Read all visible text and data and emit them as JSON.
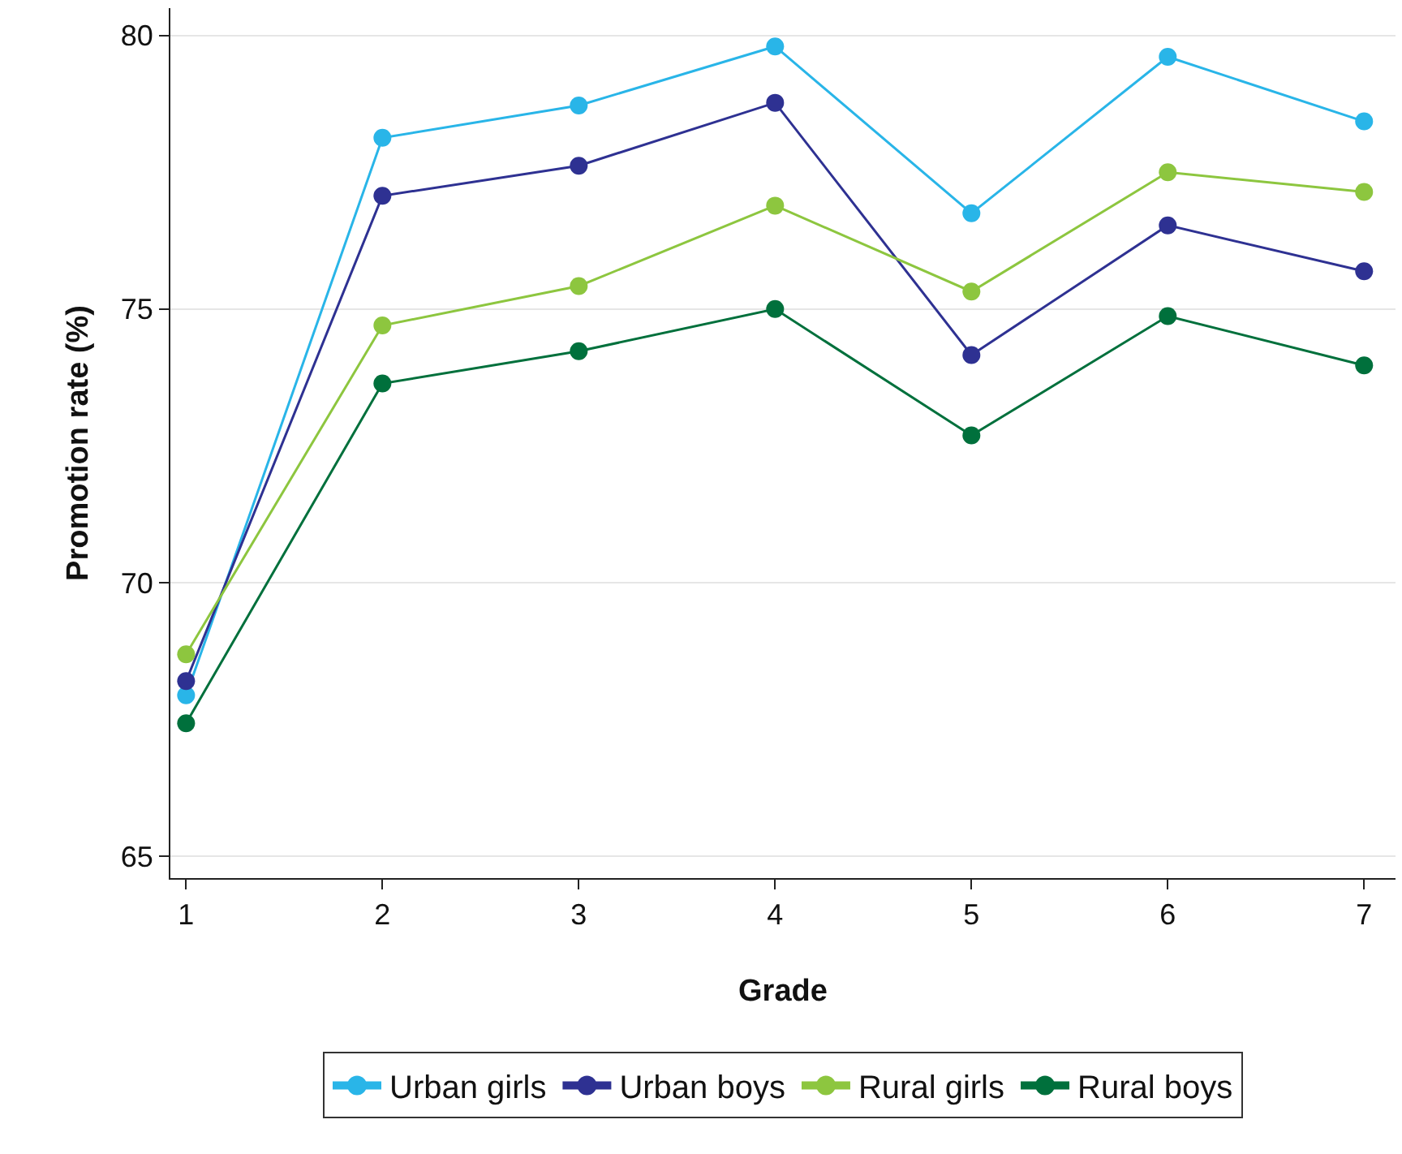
{
  "chart_data": {
    "type": "line",
    "xlabel": "Grade",
    "ylabel": "Promotion rate (%)",
    "x": [
      1,
      2,
      3,
      4,
      5,
      6,
      7
    ],
    "series": [
      {
        "name": "Urban girls",
        "color": "#29b5e8",
        "values": [
          67.94,
          78.13,
          78.72,
          79.8,
          76.75,
          79.61,
          78.43
        ]
      },
      {
        "name": "Urban boys",
        "color": "#2e3192",
        "values": [
          68.2,
          77.07,
          77.62,
          78.77,
          74.16,
          76.53,
          75.69
        ]
      },
      {
        "name": "Rural girls",
        "color": "#8dc63f",
        "values": [
          68.69,
          74.7,
          75.42,
          76.89,
          75.32,
          77.5,
          77.14
        ]
      },
      {
        "name": "Rural boys",
        "color": "#00703c",
        "values": [
          67.43,
          73.64,
          74.23,
          75.0,
          72.69,
          74.87,
          73.97
        ]
      }
    ],
    "xlim": [
      0.92,
      7.16
    ],
    "xticks": [
      1,
      2,
      3,
      4,
      5,
      6,
      7
    ],
    "ylim": [
      64.6,
      80.5
    ],
    "yticks": [
      65,
      70,
      75,
      80
    ],
    "grid": "y",
    "legend": "bottom",
    "marker": "circle",
    "line_style": "solid"
  }
}
